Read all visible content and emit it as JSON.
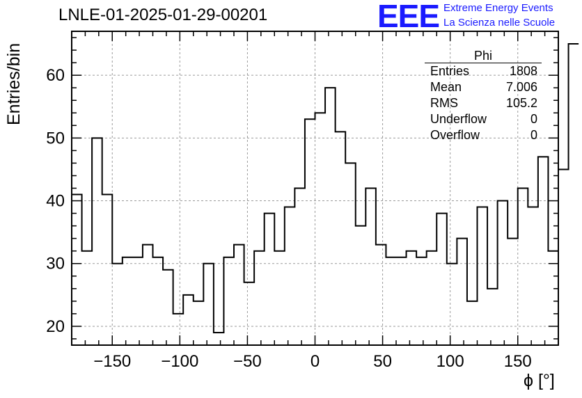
{
  "header": {
    "title": "LNLE-01-2025-01-29-00201",
    "logo_text": "EEE",
    "logo_line1": "Extreme Energy Events",
    "logo_line2": "La Scienza nelle Scuole"
  },
  "stats_box": {
    "name": "Phi",
    "rows": [
      {
        "label": "Entries",
        "value": "1808"
      },
      {
        "label": "Mean",
        "value": "7.006"
      },
      {
        "label": "RMS",
        "value": "105.2"
      },
      {
        "label": "Underflow",
        "value": "0"
      },
      {
        "label": "Overflow",
        "value": "0"
      }
    ]
  },
  "colors": {
    "logo": "#1a1aff",
    "line": "#000000",
    "grid": "#9a9a9a"
  },
  "chart_data": {
    "type": "bar",
    "histogram_style": "step",
    "xlabel": "ϕ [°]",
    "ylabel": "Entries/bin",
    "xlim": [
      -180,
      180
    ],
    "ylim": [
      17,
      67
    ],
    "bin_width": 7.5,
    "x_ticks": [
      -150,
      -100,
      -50,
      0,
      50,
      100,
      150
    ],
    "y_ticks": [
      20,
      30,
      40,
      50,
      60
    ],
    "grid": true,
    "bin_edges_start": -180,
    "values": [
      41,
      32,
      50,
      41,
      30,
      31,
      31,
      33,
      31,
      29,
      22,
      25,
      24,
      30,
      19,
      31,
      33,
      27,
      32,
      38,
      32,
      39,
      42,
      53,
      54,
      58,
      51,
      46,
      36,
      42,
      33,
      31,
      31,
      32,
      31,
      32,
      38,
      30,
      34,
      24,
      39,
      26,
      40,
      34,
      42,
      39,
      47,
      32,
      45,
      65
    ]
  }
}
